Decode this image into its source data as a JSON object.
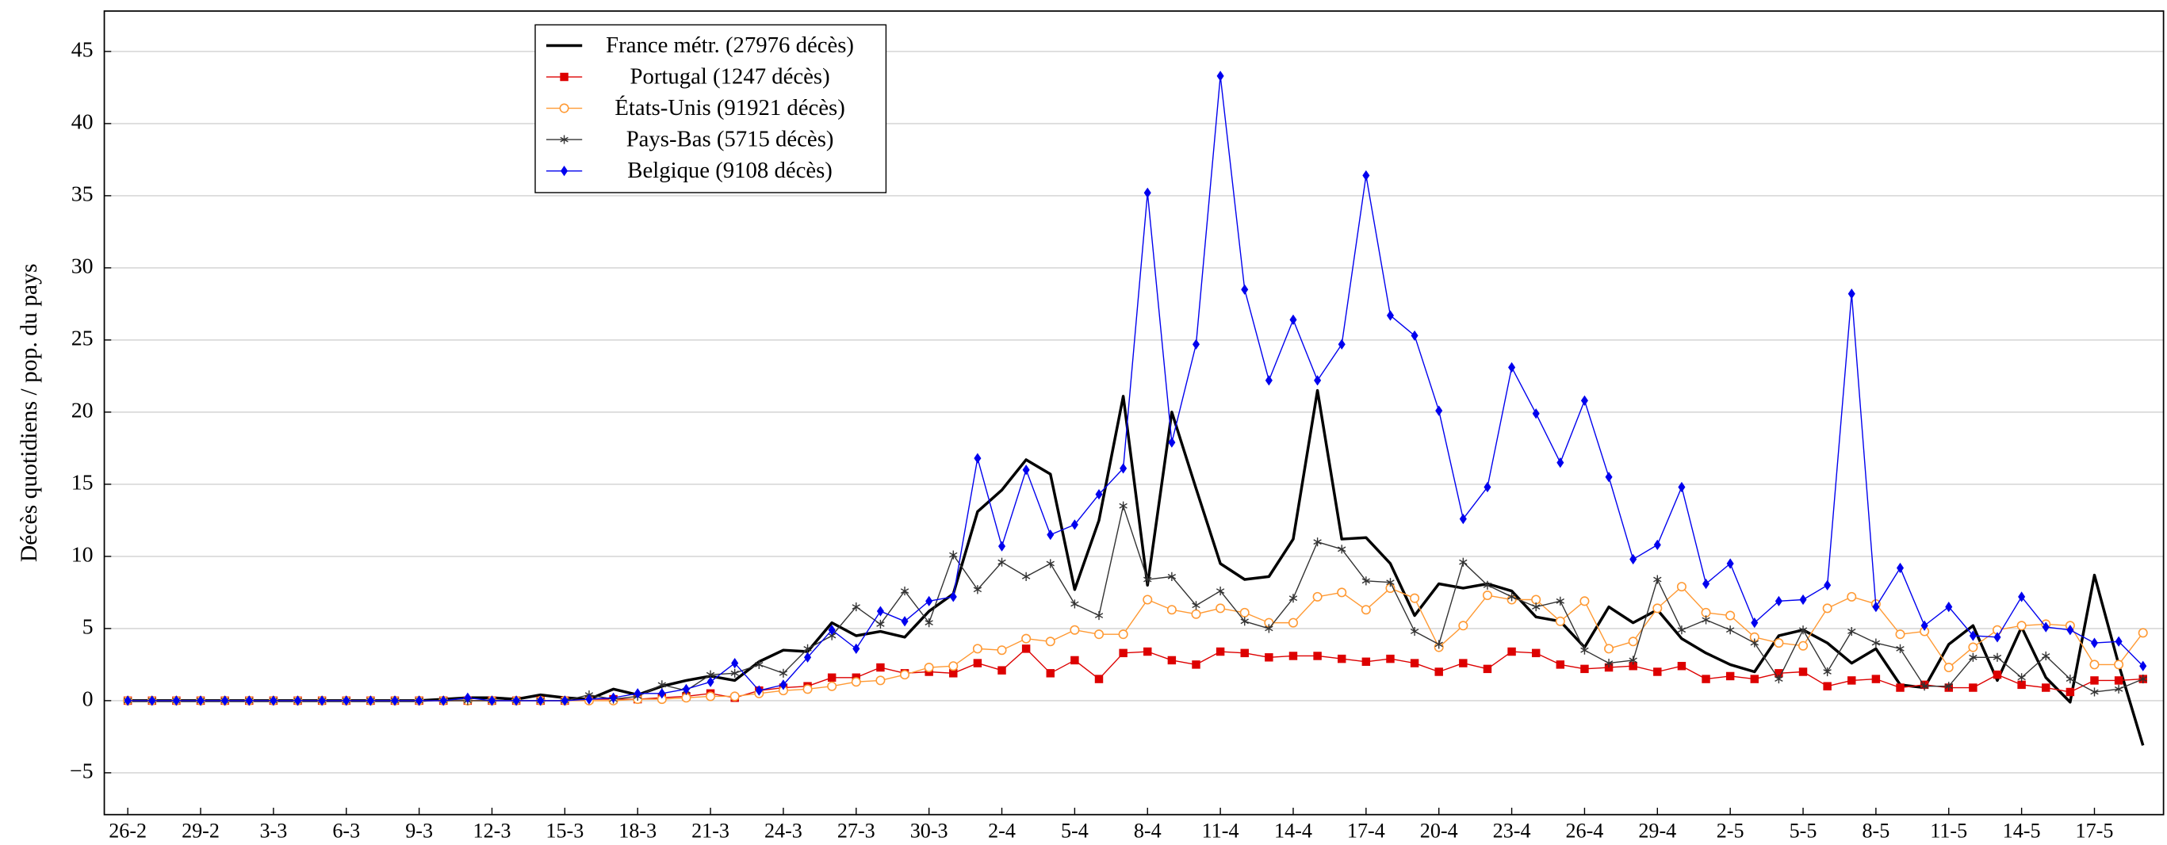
{
  "chart_data": {
    "type": "line",
    "y_label": "Décès quotidiens / pop. du pays",
    "categories": [
      "26-2",
      null,
      null,
      "29-2",
      null,
      null,
      "3-3",
      null,
      null,
      "6-3",
      null,
      null,
      "9-3",
      null,
      null,
      "12-3",
      null,
      null,
      "15-3",
      null,
      null,
      "18-3",
      null,
      null,
      "21-3",
      null,
      null,
      "24-3",
      null,
      null,
      "27-3",
      null,
      null,
      "30-3",
      null,
      null,
      "2-4",
      null,
      null,
      "5-4",
      null,
      null,
      "8-4",
      null,
      null,
      "11-4",
      null,
      null,
      "14-4",
      null,
      null,
      "17-4",
      null,
      null,
      "20-4",
      null,
      null,
      "23-4",
      null,
      null,
      "26-4",
      null,
      null,
      "29-4",
      null,
      null,
      "2-5",
      null,
      null,
      "5-5",
      null,
      null,
      "8-5",
      null,
      null,
      "11-5",
      null,
      null,
      "14-5",
      null,
      null,
      "17-5",
      null,
      null
    ],
    "ylim": [
      -7.9,
      47.8
    ],
    "yticks": [
      {
        "value": -5,
        "label": "−5"
      },
      0,
      5,
      10,
      15,
      20,
      25,
      30,
      35,
      40,
      45
    ],
    "grid": true,
    "legend": "upper left",
    "series": [
      {
        "name": "France métr. (27976 décès)",
        "color": "#000000",
        "marker": "none",
        "values": [
          0,
          0,
          0,
          0,
          0,
          0,
          0,
          0,
          0,
          0,
          0,
          0,
          0,
          0.1,
          0.2,
          0.2,
          0.1,
          0.4,
          0.2,
          0.1,
          0.8,
          0.4,
          1.0,
          1.4,
          1.7,
          1.4,
          2.7,
          3.5,
          3.4,
          5.4,
          4.5,
          4.8,
          4.4,
          6.2,
          7.4,
          13.1,
          14.6,
          16.7,
          15.7,
          7.7,
          12.5,
          21.1,
          8.0,
          20.0,
          14.7,
          9.5,
          8.4,
          8.6,
          11.2,
          21.5,
          11.2,
          11.3,
          9.5,
          5.9,
          8.1,
          7.8,
          8.1,
          7.6,
          5.8,
          5.5,
          3.7,
          6.5,
          5.4,
          6.3,
          4.3,
          3.3,
          2.5,
          2.0,
          4.5,
          4.9,
          4.0,
          2.6,
          3.6,
          1.1,
          0.9,
          3.9,
          5.2,
          1.4,
          5.1,
          1.6,
          -0.1,
          8.7,
          2.5,
          -3.1
        ]
      },
      {
        "name": "Portugal (1247 décès)",
        "color": "#dd0000",
        "marker": "square",
        "values": [
          0,
          0,
          0,
          0,
          0,
          0,
          0,
          0,
          0,
          0,
          0,
          0,
          0,
          0,
          0,
          0,
          0,
          0,
          0,
          0.1,
          0.1,
          0.1,
          0.2,
          0.3,
          0.5,
          0.2,
          0.7,
          0.9,
          1.0,
          1.6,
          1.6,
          2.3,
          1.9,
          2.0,
          1.9,
          2.6,
          2.1,
          3.6,
          1.9,
          2.8,
          1.5,
          3.3,
          3.4,
          2.8,
          2.5,
          3.4,
          3.3,
          3.0,
          3.1,
          3.1,
          2.9,
          2.7,
          2.9,
          2.6,
          2.0,
          2.6,
          2.2,
          3.4,
          3.3,
          2.5,
          2.2,
          2.3,
          2.4,
          2.0,
          2.4,
          1.5,
          1.7,
          1.5,
          1.9,
          2.0,
          1.0,
          1.4,
          1.5,
          0.9,
          1.1,
          0.9,
          0.9,
          1.8,
          1.1,
          0.9,
          0.6,
          1.4,
          1.4,
          1.5
        ]
      },
      {
        "name": "États-Unis (91921 décès)",
        "color": "#ff9933",
        "marker": "circle",
        "values": [
          0,
          0,
          0,
          0,
          0,
          0,
          0,
          0,
          0,
          0,
          0,
          0,
          0,
          0,
          0,
          0,
          0,
          0,
          0,
          0,
          0,
          0.1,
          0.1,
          0.2,
          0.3,
          0.3,
          0.5,
          0.7,
          0.8,
          1.0,
          1.3,
          1.4,
          1.8,
          2.3,
          2.4,
          3.6,
          3.5,
          4.3,
          4.1,
          4.9,
          4.6,
          4.6,
          7.0,
          6.3,
          6.0,
          6.4,
          6.1,
          5.4,
          5.4,
          7.2,
          7.5,
          6.3,
          7.8,
          7.1,
          3.7,
          5.2,
          7.3,
          7.0,
          7.0,
          5.5,
          6.9,
          3.6,
          4.1,
          6.4,
          7.9,
          6.1,
          5.9,
          4.4,
          4.0,
          3.8,
          6.4,
          7.2,
          6.7,
          4.6,
          4.8,
          2.3,
          3.7,
          4.9,
          5.2,
          5.3,
          5.2,
          2.5,
          2.5,
          4.7
        ]
      },
      {
        "name": "Pays-Bas (5715 décès)",
        "color": "#333333",
        "marker": "star",
        "values": [
          0,
          0,
          0,
          0,
          0,
          0,
          0,
          0,
          0,
          0,
          0,
          0,
          0,
          0,
          0,
          0,
          0,
          0,
          0,
          0.4,
          0.1,
          0.3,
          1.1,
          0.7,
          1.8,
          1.9,
          2.5,
          1.9,
          3.6,
          4.5,
          6.5,
          5.3,
          7.6,
          5.4,
          10.1,
          7.7,
          9.6,
          8.6,
          9.5,
          6.7,
          5.9,
          13.5,
          8.4,
          8.6,
          6.6,
          7.6,
          5.5,
          5.0,
          7.1,
          11.0,
          10.5,
          8.3,
          8.2,
          4.8,
          3.9,
          9.6,
          8.0,
          7.2,
          6.5,
          6.9,
          3.5,
          2.6,
          2.8,
          8.4,
          4.9,
          5.6,
          4.9,
          4.0,
          1.5,
          4.9,
          2.0,
          4.8,
          4.0,
          3.6,
          1.0,
          1.0,
          3.0,
          3.0,
          1.6,
          3.1,
          1.5,
          0.6,
          0.8,
          1.5
        ]
      },
      {
        "name": "Belgique (9108 décès)",
        "color": "#0000ee",
        "marker": "diamond",
        "values": [
          0,
          0,
          0,
          0,
          0,
          0,
          0,
          0,
          0,
          0,
          0,
          0,
          0,
          0,
          0.2,
          0,
          0,
          0,
          0,
          0.1,
          0.2,
          0.5,
          0.5,
          0.8,
          1.3,
          2.6,
          0.7,
          1.1,
          3.0,
          4.9,
          3.6,
          6.2,
          5.5,
          6.9,
          7.2,
          16.8,
          10.7,
          16.0,
          11.5,
          12.2,
          14.3,
          16.1,
          35.2,
          17.9,
          24.7,
          43.3,
          28.5,
          22.2,
          26.4,
          22.2,
          24.7,
          36.4,
          26.7,
          25.3,
          20.1,
          12.6,
          14.8,
          23.1,
          19.9,
          16.5,
          20.8,
          15.5,
          9.8,
          10.8,
          14.8,
          8.1,
          9.5,
          5.4,
          6.9,
          7.0,
          8.0,
          28.2,
          6.5,
          9.2,
          5.2,
          6.5,
          4.5,
          4.4,
          7.2,
          5.1,
          4.9,
          4.0,
          4.1,
          2.4
        ]
      }
    ]
  }
}
